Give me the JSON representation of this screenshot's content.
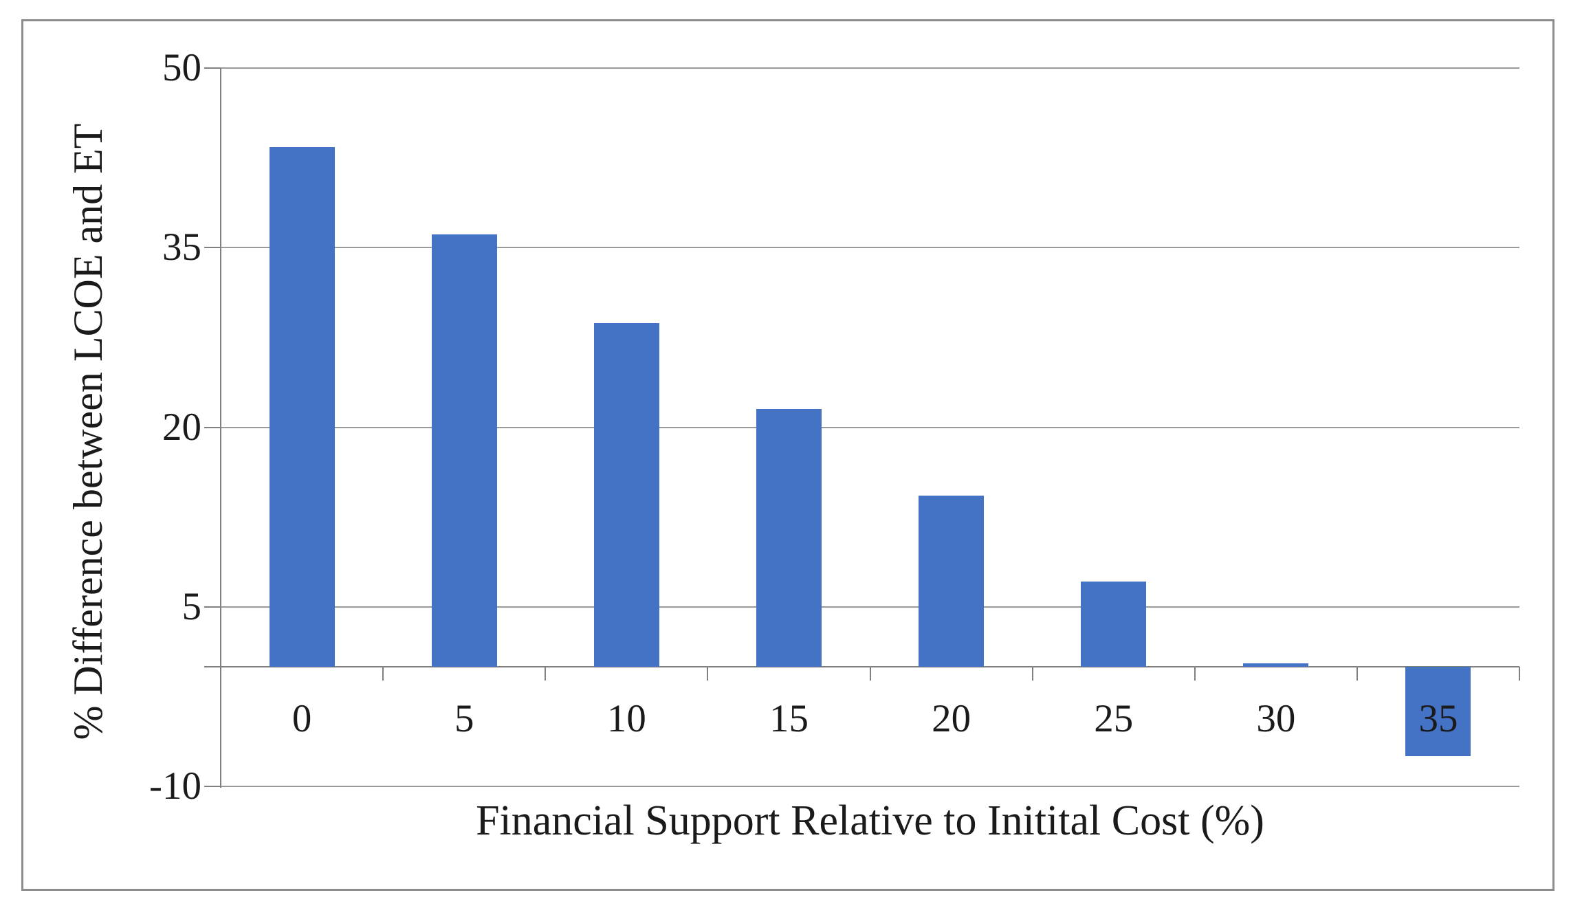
{
  "chart_data": {
    "type": "bar",
    "title": "",
    "categories": [
      "0",
      "5",
      "10",
      "15",
      "20",
      "25",
      "30",
      "35"
    ],
    "values": [
      43.4,
      36.1,
      28.7,
      21.5,
      14.3,
      7.1,
      0.3,
      -7.5
    ],
    "xlabel": "Financial Support Relative to Initital Cost (%)",
    "ylabel": "% Difference between LCOE and ET",
    "ylim": [
      -10,
      50
    ],
    "yticks": [
      50,
      35,
      20,
      5,
      -10
    ],
    "grid": true,
    "legend_position": "none",
    "bar_color": "#4472C4",
    "gridline_color": "#9a9a9a",
    "axis_color": "#808080",
    "border_color": "#8c8c8c",
    "text_color": "#1a1a1a"
  }
}
